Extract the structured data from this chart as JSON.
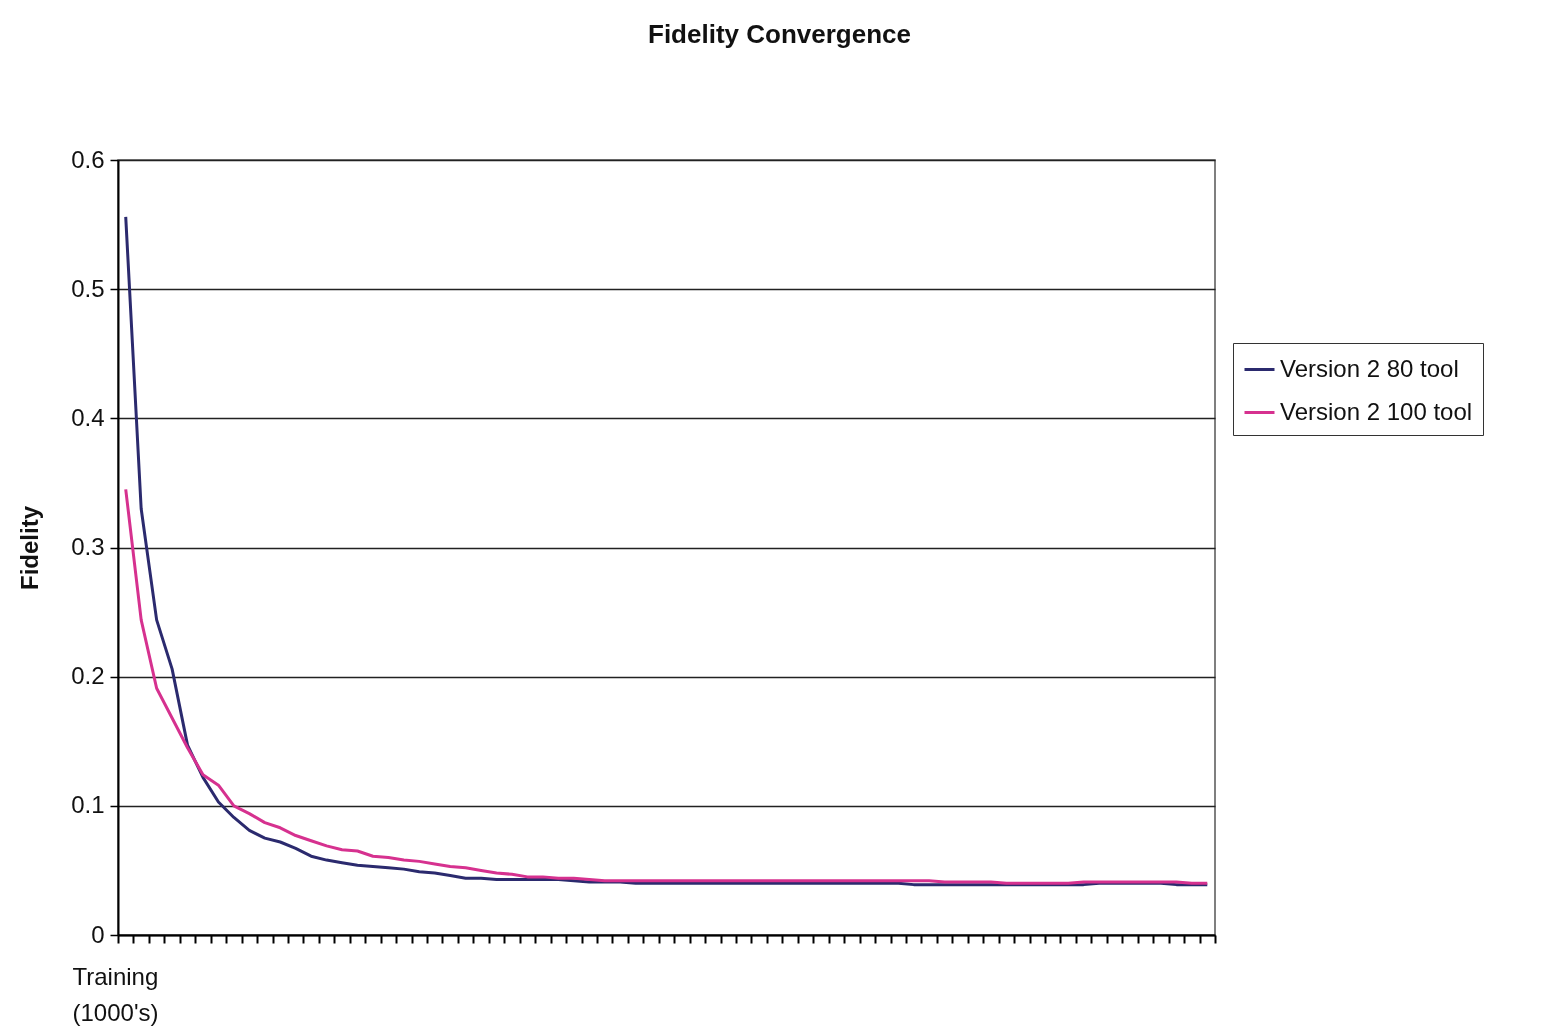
{
  "chart_data": {
    "type": "line",
    "title": "Fidelity Convergence",
    "xlabel": "Training (1000's)",
    "ylabel": "Fidelity",
    "categories": [
      null,
      null,
      null,
      null,
      null,
      null,
      null,
      null,
      null,
      null,
      null,
      null,
      null,
      null,
      null,
      null,
      null,
      null,
      null,
      null,
      null,
      null,
      null,
      null,
      null,
      null,
      null,
      null,
      null,
      null,
      null,
      null,
      null,
      null,
      null,
      null,
      null,
      null,
      null,
      null,
      null,
      null,
      null,
      null,
      null,
      null,
      null,
      null,
      null,
      null,
      null,
      null,
      null,
      null,
      null,
      null,
      null,
      null,
      null,
      null,
      null,
      null,
      null,
      null,
      null,
      null,
      null,
      null,
      null,
      null,
      null
    ],
    "series": [
      {
        "name": "Version 2 80 tool",
        "color": "#2b2a6e",
        "values": [
          0.556,
          0.33,
          0.244,
          0.206,
          0.147,
          0.122,
          0.103,
          0.091,
          0.081,
          0.075,
          0.072,
          0.067,
          0.061,
          0.058,
          0.056,
          0.054,
          0.053,
          0.052,
          0.051,
          0.049,
          0.048,
          0.046,
          0.044,
          0.044,
          0.043,
          0.043,
          0.043,
          0.043,
          0.043,
          0.042,
          0.041,
          0.041,
          0.041,
          0.04,
          0.04,
          0.04,
          0.04,
          0.04,
          0.04,
          0.04,
          0.04,
          0.04,
          0.04,
          0.04,
          0.04,
          0.04,
          0.04,
          0.04,
          0.04,
          0.04,
          0.04,
          0.039,
          0.039,
          0.039,
          0.039,
          0.039,
          0.039,
          0.039,
          0.039,
          0.039,
          0.039,
          0.039,
          0.039,
          0.04,
          0.04,
          0.04,
          0.04,
          0.04,
          0.039,
          0.039,
          0.039
        ]
      },
      {
        "name": "Version 2 100 tool",
        "color": "#d6318f",
        "values": [
          0.345,
          0.244,
          0.191,
          0.168,
          0.145,
          0.124,
          0.116,
          0.1,
          0.094,
          0.087,
          0.083,
          0.077,
          0.073,
          0.069,
          0.066,
          0.065,
          0.061,
          0.06,
          0.058,
          0.057,
          0.055,
          0.053,
          0.052,
          0.05,
          0.048,
          0.047,
          0.045,
          0.045,
          0.044,
          0.044,
          0.043,
          0.042,
          0.042,
          0.042,
          0.042,
          0.042,
          0.042,
          0.042,
          0.042,
          0.042,
          0.042,
          0.042,
          0.042,
          0.042,
          0.042,
          0.042,
          0.042,
          0.042,
          0.042,
          0.042,
          0.042,
          0.042,
          0.042,
          0.041,
          0.041,
          0.041,
          0.041,
          0.04,
          0.04,
          0.04,
          0.04,
          0.04,
          0.041,
          0.041,
          0.041,
          0.041,
          0.041,
          0.041,
          0.041,
          0.04,
          0.04
        ]
      }
    ],
    "ylim": [
      0,
      0.6
    ],
    "yticks": [
      0,
      0.1,
      0.2,
      0.3,
      0.4,
      0.5,
      0.6
    ],
    "grid": "y",
    "legend": "right",
    "tick_labels": "y",
    "marker": "none",
    "line_style": "solid"
  }
}
